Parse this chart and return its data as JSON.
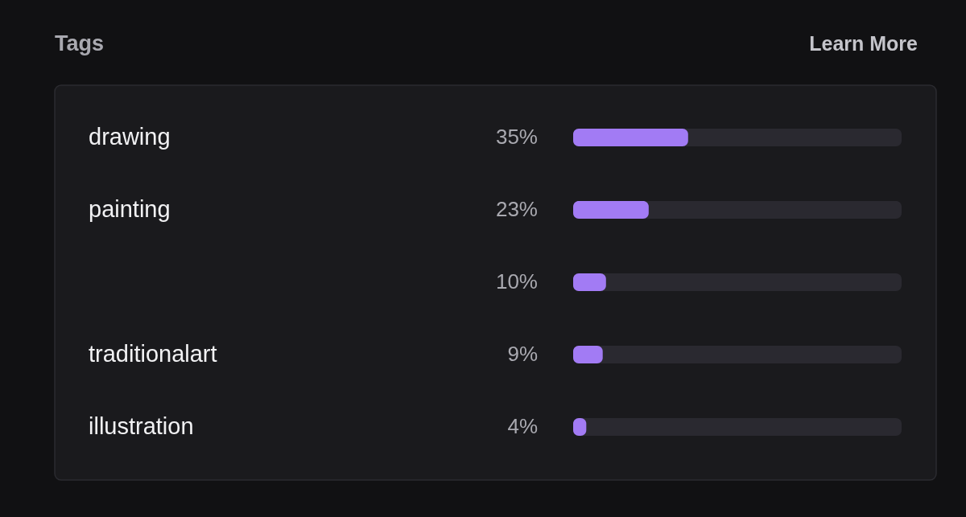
{
  "chart_data": {
    "type": "bar",
    "orientation": "horizontal",
    "title": "Tags",
    "annotations": [
      "Learn More"
    ],
    "categories": [
      "drawing",
      "painting",
      null,
      "traditionalart",
      "illustration"
    ],
    "values": [
      35,
      23,
      10,
      9,
      4
    ],
    "value_labels": [
      "35%",
      "23%",
      "10%",
      "9%",
      "4%"
    ],
    "color": "#a27bf4",
    "xlim": [
      0,
      100
    ]
  }
}
